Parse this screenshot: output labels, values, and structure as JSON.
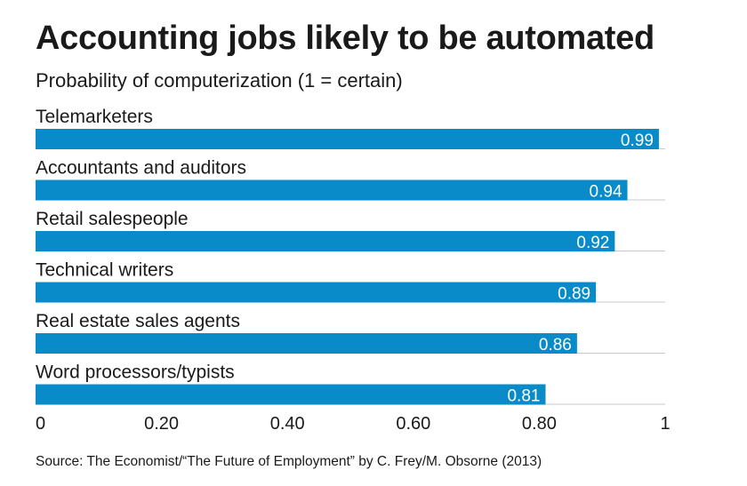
{
  "chart_data": {
    "type": "bar",
    "orientation": "horizontal",
    "title": "Accounting jobs likely to be automated",
    "subtitle": "Probability of computerization (1 = certain)",
    "categories": [
      "Telemarketers",
      "Accountants and auditors",
      "Retail salespeople",
      "Technical writers",
      "Real estate sales agents",
      "Word processors/typists"
    ],
    "values": [
      0.99,
      0.94,
      0.92,
      0.89,
      0.86,
      0.81
    ],
    "value_labels": [
      "0.99",
      "0.94",
      "0.92",
      "0.89",
      "0.86",
      "0.81"
    ],
    "xlim": [
      0,
      1
    ],
    "xticks": [
      0,
      0.2,
      0.4,
      0.6,
      0.8,
      1
    ],
    "xtick_labels": [
      "0",
      "0.20",
      "0.40",
      "0.60",
      "0.80",
      "1"
    ],
    "xlabel": "",
    "ylabel": "",
    "grid": false,
    "bar_color": "#0a8bc9",
    "source": "Source: The Economist/“The Future of Employment” by C. Frey/M. Obsorne (2013)"
  }
}
